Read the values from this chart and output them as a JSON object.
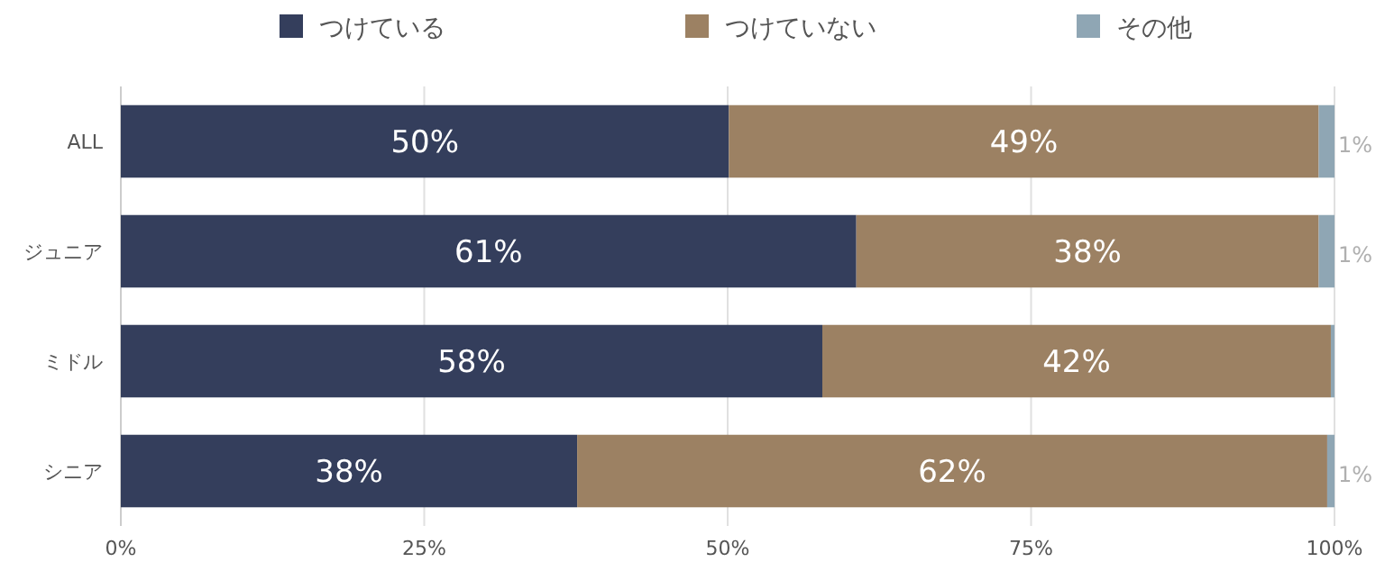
{
  "chart_data": {
    "type": "bar",
    "orientation": "horizontal",
    "stacked": true,
    "categories": [
      "ALL",
      "ジュニア",
      "ミドル",
      "シニア"
    ],
    "series": [
      {
        "name": "つけている",
        "color": "#343e5c",
        "values": [
          50.1,
          60.6,
          57.8,
          37.6
        ],
        "value_labels": [
          "50%",
          "61%",
          "58%",
          "38%"
        ]
      },
      {
        "name": "つけていない",
        "color": "#9c8163",
        "values": [
          48.6,
          38.1,
          41.9,
          61.8
        ],
        "value_labels": [
          "49%",
          "38%",
          "42%",
          "62%"
        ]
      },
      {
        "name": "その他",
        "color": "#8fa6b4",
        "values": [
          1.3,
          1.3,
          0.3,
          0.6
        ],
        "value_labels": [
          "1%",
          "1%",
          null,
          "1%"
        ]
      }
    ],
    "xlim": [
      0,
      100
    ],
    "xticks": [
      {
        "value": 0,
        "label": "0%"
      },
      {
        "value": 25,
        "label": "25%"
      },
      {
        "value": 50,
        "label": "50%"
      },
      {
        "value": 75,
        "label": "75%"
      },
      {
        "value": 100,
        "label": "100%"
      }
    ],
    "grid": "x",
    "legend": "top"
  }
}
